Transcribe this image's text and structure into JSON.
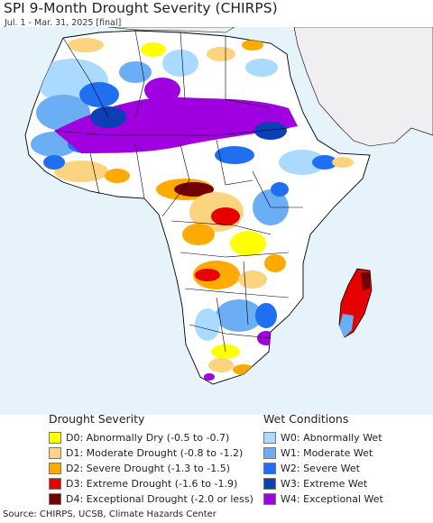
{
  "header": {
    "title": "SPI 9-Month Drought Severity (CHIRPS)",
    "subtitle": "Jul. 1 - Mar. 31, 2025 [final]"
  },
  "map": {
    "region": "Africa",
    "ocean_color": "#e6f3fb",
    "land_neutral_color": "#ffffff",
    "outside_land_color": "#f0eef0",
    "border_color": "#000000"
  },
  "legend": {
    "drought": {
      "title": "Drought Severity",
      "items": [
        {
          "label": "D0: Abnormally Dry (-0.5 to -0.7)",
          "color": "#ffff00"
        },
        {
          "label": "D1: Moderate Drought (-0.8 to -1.2)",
          "color": "#fcd37f"
        },
        {
          "label": "D2: Severe Drought (-1.3 to -1.5)",
          "color": "#ffaa00"
        },
        {
          "label": "D3: Extreme Drought (-1.6 to -1.9)",
          "color": "#e60000"
        },
        {
          "label": "D4: Exceptional Drought (-2.0 or less)",
          "color": "#730000"
        }
      ]
    },
    "wet": {
      "title": "Wet Conditions",
      "items": [
        {
          "label": "W0: Abnormally Wet",
          "color": "#aadaff"
        },
        {
          "label": "W1: Moderate Wet",
          "color": "#6baef5"
        },
        {
          "label": "W2: Severe Wet",
          "color": "#1f6ff0"
        },
        {
          "label": "W3: Extreme Wet",
          "color": "#0c3fb4"
        },
        {
          "label": "W4: Exceptional Wet",
          "color": "#a000e0"
        }
      ]
    }
  },
  "footer": {
    "source": "Source: CHIRPS, UCSB, Climate Hazards Center"
  }
}
